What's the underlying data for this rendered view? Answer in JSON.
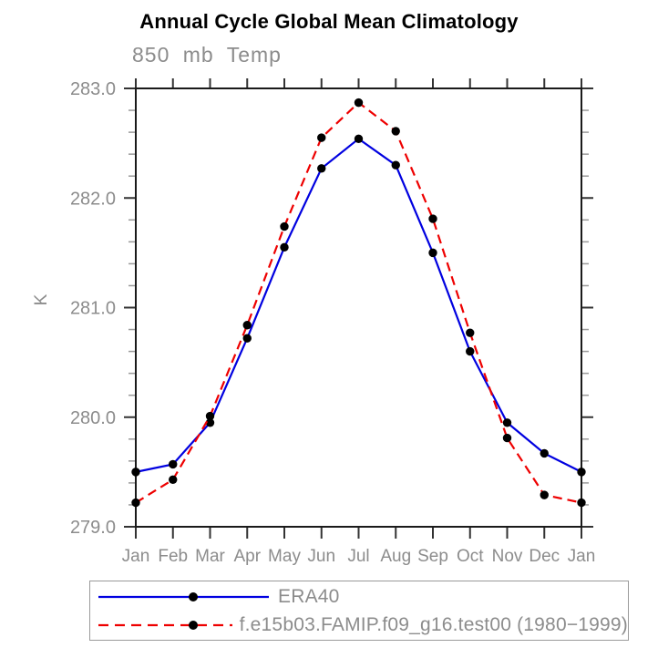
{
  "chart_data": {
    "type": "line",
    "title": "Annual Cycle Global Mean Climatology",
    "subtitle": "850 mb Temp",
    "ylabel": "K",
    "categories": [
      "Jan",
      "Feb",
      "Mar",
      "Apr",
      "May",
      "Jun",
      "Jul",
      "Aug",
      "Sep",
      "Oct",
      "Nov",
      "Dec",
      "Jan"
    ],
    "ylim": [
      279.0,
      283.0
    ],
    "ytick_major_step": 1.0,
    "ytick_minor_step": 0.2,
    "ytick_labels": [
      "279.0",
      "280.0",
      "281.0",
      "282.0",
      "283.0"
    ],
    "ytick_values": [
      279.0,
      280.0,
      281.0,
      282.0,
      283.0
    ],
    "grid": false,
    "legend_position": "bottom-left-box",
    "series": [
      {
        "name": "ERA40",
        "color": "#0000e0",
        "style": "solid",
        "marker": "circle",
        "marker_color": "#000000",
        "values": [
          279.5,
          279.57,
          279.95,
          280.72,
          281.55,
          282.27,
          282.54,
          282.3,
          281.5,
          280.6,
          279.95,
          279.67,
          279.5
        ]
      },
      {
        "name": "f.e15b03.FAMIP.f09_g16.test00 (1980−1999)",
        "color": "#ee0000",
        "style": "dashed",
        "marker": "circle",
        "marker_color": "#000000",
        "values": [
          279.22,
          279.43,
          280.01,
          280.84,
          281.74,
          282.55,
          282.87,
          282.61,
          281.81,
          280.77,
          279.81,
          279.29,
          279.22
        ]
      }
    ],
    "axis_color": "#1a1a1a",
    "major_tick_color": "#333333",
    "minor_tick_color": "#9a9a9a",
    "label_color": "#8c8c8c"
  }
}
